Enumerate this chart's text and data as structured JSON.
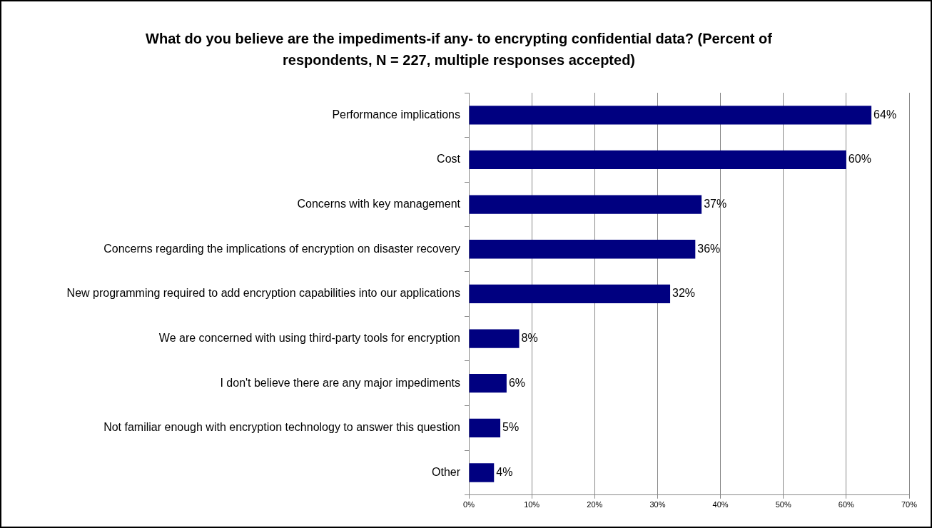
{
  "chart_data": {
    "type": "bar",
    "orientation": "horizontal",
    "title": "What do you believe are the impediments-if any- to encrypting confidential data? (Percent of respondents, N = 227, multiple responses accepted)",
    "categories": [
      "Performance implications",
      "Cost",
      "Concerns with key management",
      "Concerns regarding the implications of encryption on disaster recovery",
      "New programming required to add encryption capabilities into our applications",
      "We are concerned with using third-party tools for encryption",
      "I don't believe there are any major impediments",
      "Not familiar enough with encryption technology to answer this question",
      "Other"
    ],
    "values": [
      64,
      60,
      37,
      36,
      32,
      8,
      6,
      5,
      4
    ],
    "value_labels": [
      "64%",
      "60%",
      "37%",
      "36%",
      "32%",
      "8%",
      "6%",
      "5%",
      "4%"
    ],
    "color": "#000080",
    "xlim": [
      0,
      70
    ],
    "xticks": [
      {
        "value": 0,
        "label": "0%"
      },
      {
        "value": 10,
        "label": "10%"
      },
      {
        "value": 20,
        "label": "20%"
      },
      {
        "value": 30,
        "label": "30%"
      },
      {
        "value": 40,
        "label": "40%"
      },
      {
        "value": 50,
        "label": "50%"
      },
      {
        "value": 60,
        "label": "60%"
      },
      {
        "value": 70,
        "label": "70%"
      }
    ],
    "grid": "x",
    "legend": false
  }
}
